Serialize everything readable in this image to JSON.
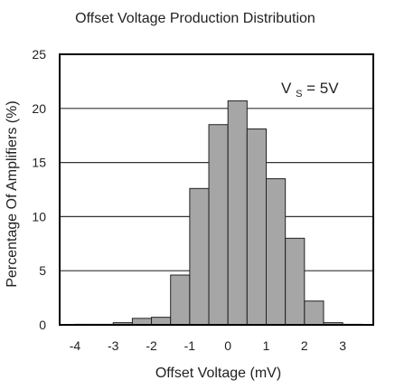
{
  "chart_data": {
    "type": "bar",
    "title": "Offset Voltage Production Distribution",
    "xlabel": "Offset Voltage (mV)",
    "ylabel": "Percentage Of Amplifiers (%)",
    "xlim": [
      -4.4,
      3.8
    ],
    "ylim": [
      0,
      25
    ],
    "xticks": [
      -4,
      -3,
      -2,
      -1,
      0,
      1,
      2,
      3
    ],
    "yticks": [
      0,
      5,
      10,
      15,
      20,
      25
    ],
    "bin_width": 0.5,
    "bins": [
      {
        "x_start": -4.0,
        "value": 0.05
      },
      {
        "x_start": -3.5,
        "value": 0.05
      },
      {
        "x_start": -3.0,
        "value": 0.2
      },
      {
        "x_start": -2.5,
        "value": 0.6
      },
      {
        "x_start": -2.0,
        "value": 0.7
      },
      {
        "x_start": -1.5,
        "value": 4.6
      },
      {
        "x_start": -1.0,
        "value": 12.6
      },
      {
        "x_start": -0.5,
        "value": 18.5
      },
      {
        "x_start": 0.0,
        "value": 20.7
      },
      {
        "x_start": 0.5,
        "value": 18.1
      },
      {
        "x_start": 1.0,
        "value": 13.5
      },
      {
        "x_start": 1.5,
        "value": 8.0
      },
      {
        "x_start": 2.0,
        "value": 2.2
      },
      {
        "x_start": 2.5,
        "value": 0.2
      },
      {
        "x_start": 3.0,
        "value": 0.05
      }
    ],
    "grid": {
      "horizontal": true,
      "vertical": false
    },
    "annotation": {
      "main": "V",
      "subscript": "S",
      "rest": " = 5V",
      "placement": "top-right"
    },
    "colors": {
      "bar_fill": "#a6a6a6",
      "bar_stroke": "#222222",
      "grid": "#333333",
      "frame": "#000000"
    }
  }
}
